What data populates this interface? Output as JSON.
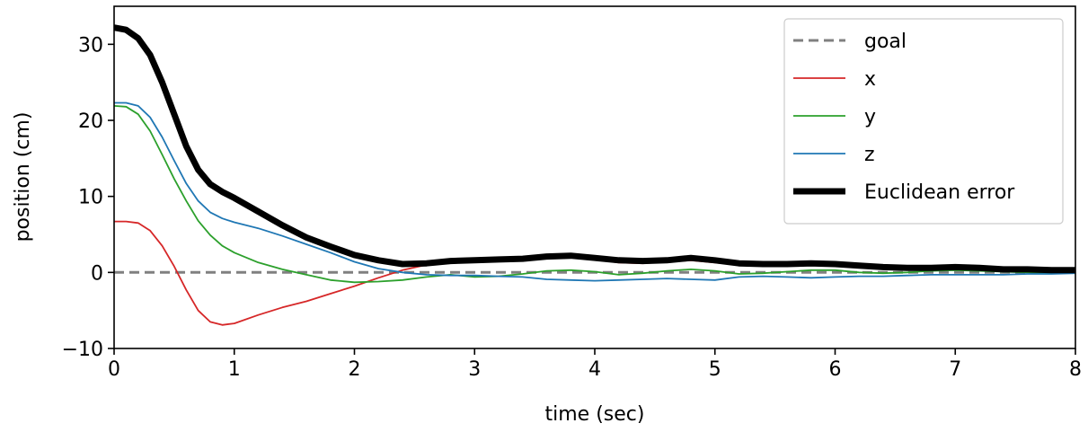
{
  "chart_data": {
    "type": "line",
    "xlabel": "time (sec)",
    "ylabel": "position (cm)",
    "xlim": [
      0,
      8
    ],
    "ylim": [
      -10,
      35
    ],
    "x_ticks": [
      0,
      1,
      2,
      3,
      4,
      5,
      6,
      7,
      8
    ],
    "y_ticks": [
      -10,
      0,
      10,
      20,
      30
    ],
    "y_tick_labels": [
      "−10",
      "0",
      "10",
      "20",
      "30"
    ],
    "grid": false,
    "legend_position": "top-right",
    "series": [
      {
        "name": "goal",
        "color": "#808080",
        "style": "dashed",
        "points": [
          [
            0,
            0
          ],
          [
            8,
            0
          ]
        ]
      },
      {
        "name": "x",
        "color": "#d62728",
        "style": "solid",
        "points": [
          [
            0,
            6.7
          ],
          [
            0.1,
            6.7
          ],
          [
            0.2,
            6.5
          ],
          [
            0.3,
            5.5
          ],
          [
            0.4,
            3.5
          ],
          [
            0.5,
            0.8
          ],
          [
            0.6,
            -2.3
          ],
          [
            0.7,
            -5.0
          ],
          [
            0.8,
            -6.5
          ],
          [
            0.9,
            -6.9
          ],
          [
            1.0,
            -6.7
          ],
          [
            1.2,
            -5.6
          ],
          [
            1.4,
            -4.6
          ],
          [
            1.6,
            -3.8
          ],
          [
            1.8,
            -2.8
          ],
          [
            2.0,
            -1.8
          ],
          [
            2.2,
            -0.7
          ],
          [
            2.4,
            0.3
          ],
          [
            2.6,
            1.0
          ],
          [
            2.8,
            1.3
          ],
          [
            3.0,
            1.4
          ],
          [
            3.2,
            1.6
          ],
          [
            3.4,
            1.8
          ],
          [
            3.6,
            2.0
          ],
          [
            3.8,
            2.0
          ],
          [
            4.0,
            1.7
          ],
          [
            4.2,
            1.3
          ],
          [
            4.4,
            1.2
          ],
          [
            4.6,
            1.4
          ],
          [
            4.8,
            1.6
          ],
          [
            5.0,
            1.3
          ],
          [
            5.2,
            1.0
          ],
          [
            5.4,
            0.9
          ],
          [
            5.6,
            1.0
          ],
          [
            5.8,
            1.1
          ],
          [
            6.0,
            0.9
          ],
          [
            6.2,
            0.7
          ],
          [
            6.4,
            0.5
          ],
          [
            6.6,
            0.4
          ],
          [
            6.8,
            0.4
          ],
          [
            7.0,
            0.5
          ],
          [
            7.2,
            0.4
          ],
          [
            7.4,
            0.2
          ],
          [
            7.6,
            0.1
          ],
          [
            7.8,
            0.1
          ],
          [
            8.0,
            0.1
          ]
        ]
      },
      {
        "name": "y",
        "color": "#2ca02c",
        "style": "solid",
        "points": [
          [
            0,
            21.9
          ],
          [
            0.1,
            21.8
          ],
          [
            0.2,
            20.8
          ],
          [
            0.3,
            18.6
          ],
          [
            0.4,
            15.5
          ],
          [
            0.5,
            12.3
          ],
          [
            0.6,
            9.4
          ],
          [
            0.7,
            6.8
          ],
          [
            0.8,
            4.9
          ],
          [
            0.9,
            3.5
          ],
          [
            1.0,
            2.6
          ],
          [
            1.2,
            1.3
          ],
          [
            1.4,
            0.4
          ],
          [
            1.6,
            -0.3
          ],
          [
            1.8,
            -1.0
          ],
          [
            2.0,
            -1.3
          ],
          [
            2.2,
            -1.2
          ],
          [
            2.4,
            -1.0
          ],
          [
            2.6,
            -0.6
          ],
          [
            2.8,
            -0.3
          ],
          [
            3.0,
            -0.6
          ],
          [
            3.2,
            -0.5
          ],
          [
            3.4,
            -0.2
          ],
          [
            3.6,
            0.2
          ],
          [
            3.8,
            0.3
          ],
          [
            4.0,
            0.1
          ],
          [
            4.2,
            -0.3
          ],
          [
            4.4,
            -0.1
          ],
          [
            4.6,
            0.2
          ],
          [
            4.8,
            0.4
          ],
          [
            5.0,
            0.2
          ],
          [
            5.2,
            -0.2
          ],
          [
            5.4,
            -0.1
          ],
          [
            5.6,
            0.1
          ],
          [
            5.8,
            0.3
          ],
          [
            6.0,
            0.3
          ],
          [
            6.2,
            0.0
          ],
          [
            6.4,
            -0.1
          ],
          [
            6.6,
            0.0
          ],
          [
            6.8,
            0.2
          ],
          [
            7.0,
            0.3
          ],
          [
            7.2,
            0.2
          ],
          [
            7.4,
            0.1
          ],
          [
            7.6,
            0.0
          ],
          [
            7.8,
            -0.1
          ],
          [
            8.0,
            0.0
          ]
        ]
      },
      {
        "name": "z",
        "color": "#1f77b4",
        "style": "solid",
        "points": [
          [
            0,
            22.3
          ],
          [
            0.1,
            22.3
          ],
          [
            0.2,
            21.9
          ],
          [
            0.3,
            20.4
          ],
          [
            0.4,
            17.8
          ],
          [
            0.5,
            14.7
          ],
          [
            0.6,
            11.7
          ],
          [
            0.7,
            9.4
          ],
          [
            0.8,
            7.9
          ],
          [
            0.9,
            7.1
          ],
          [
            1.0,
            6.6
          ],
          [
            1.2,
            5.8
          ],
          [
            1.4,
            4.8
          ],
          [
            1.6,
            3.7
          ],
          [
            1.8,
            2.6
          ],
          [
            2.0,
            1.4
          ],
          [
            2.2,
            0.5
          ],
          [
            2.4,
            0.0
          ],
          [
            2.6,
            -0.3
          ],
          [
            2.8,
            -0.4
          ],
          [
            3.0,
            -0.4
          ],
          [
            3.2,
            -0.5
          ],
          [
            3.4,
            -0.6
          ],
          [
            3.6,
            -0.9
          ],
          [
            3.8,
            -1.0
          ],
          [
            4.0,
            -1.1
          ],
          [
            4.2,
            -1.0
          ],
          [
            4.4,
            -0.9
          ],
          [
            4.6,
            -0.8
          ],
          [
            4.8,
            -0.9
          ],
          [
            5.0,
            -1.0
          ],
          [
            5.2,
            -0.6
          ],
          [
            5.4,
            -0.5
          ],
          [
            5.6,
            -0.6
          ],
          [
            5.8,
            -0.7
          ],
          [
            6.0,
            -0.6
          ],
          [
            6.2,
            -0.5
          ],
          [
            6.4,
            -0.5
          ],
          [
            6.6,
            -0.4
          ],
          [
            6.8,
            -0.3
          ],
          [
            7.0,
            -0.3
          ],
          [
            7.2,
            -0.3
          ],
          [
            7.4,
            -0.3
          ],
          [
            7.6,
            -0.2
          ],
          [
            7.8,
            -0.2
          ],
          [
            8.0,
            -0.1
          ]
        ]
      },
      {
        "name": "Euclidean error",
        "color": "#000000",
        "style": "thick",
        "points": [
          [
            0,
            32.2
          ],
          [
            0.1,
            31.9
          ],
          [
            0.2,
            30.8
          ],
          [
            0.3,
            28.6
          ],
          [
            0.4,
            25.0
          ],
          [
            0.5,
            20.8
          ],
          [
            0.6,
            16.6
          ],
          [
            0.7,
            13.5
          ],
          [
            0.8,
            11.6
          ],
          [
            0.9,
            10.6
          ],
          [
            1.0,
            9.8
          ],
          [
            1.2,
            8.0
          ],
          [
            1.4,
            6.2
          ],
          [
            1.6,
            4.6
          ],
          [
            1.8,
            3.4
          ],
          [
            2.0,
            2.3
          ],
          [
            2.2,
            1.6
          ],
          [
            2.4,
            1.1
          ],
          [
            2.6,
            1.2
          ],
          [
            2.8,
            1.5
          ],
          [
            3.0,
            1.6
          ],
          [
            3.2,
            1.7
          ],
          [
            3.4,
            1.8
          ],
          [
            3.6,
            2.1
          ],
          [
            3.8,
            2.2
          ],
          [
            4.0,
            1.9
          ],
          [
            4.2,
            1.6
          ],
          [
            4.4,
            1.5
          ],
          [
            4.6,
            1.6
          ],
          [
            4.8,
            1.9
          ],
          [
            5.0,
            1.6
          ],
          [
            5.2,
            1.2
          ],
          [
            5.4,
            1.1
          ],
          [
            5.6,
            1.1
          ],
          [
            5.8,
            1.2
          ],
          [
            6.0,
            1.1
          ],
          [
            6.2,
            0.9
          ],
          [
            6.4,
            0.7
          ],
          [
            6.6,
            0.6
          ],
          [
            6.8,
            0.6
          ],
          [
            7.0,
            0.7
          ],
          [
            7.2,
            0.6
          ],
          [
            7.4,
            0.4
          ],
          [
            7.6,
            0.4
          ],
          [
            7.8,
            0.3
          ],
          [
            8.0,
            0.3
          ]
        ]
      }
    ]
  }
}
